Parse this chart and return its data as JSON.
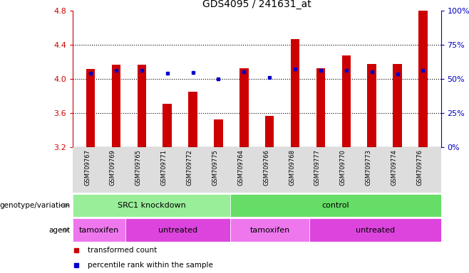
{
  "title": "GDS4095 / 241631_at",
  "samples": [
    "GSM709767",
    "GSM709769",
    "GSM709765",
    "GSM709771",
    "GSM709772",
    "GSM709775",
    "GSM709764",
    "GSM709766",
    "GSM709768",
    "GSM709777",
    "GSM709770",
    "GSM709773",
    "GSM709774",
    "GSM709776"
  ],
  "bar_values": [
    4.12,
    4.17,
    4.17,
    3.71,
    3.85,
    3.53,
    4.13,
    3.57,
    4.47,
    4.13,
    4.28,
    4.18,
    4.18,
    4.8
  ],
  "dot_values": [
    4.07,
    4.1,
    4.1,
    4.07,
    4.08,
    4.0,
    4.09,
    4.02,
    4.12,
    4.1,
    4.1,
    4.09,
    4.06,
    4.1
  ],
  "ylim_left": [
    3.2,
    4.8
  ],
  "ylim_right": [
    0,
    100
  ],
  "bar_color": "#CC0000",
  "dot_color": "#0000CC",
  "background_color": "#FFFFFF",
  "plot_bg_color": "#FFFFFF",
  "axis_left_color": "#CC0000",
  "axis_right_color": "#0000BB",
  "tick_left_values": [
    3.2,
    3.6,
    4.0,
    4.4,
    4.8
  ],
  "tick_right_values": [
    0,
    25,
    50,
    75,
    100
  ],
  "tick_right_labels": [
    "0%",
    "25%",
    "50%",
    "75%",
    "100%"
  ],
  "dotted_lines": [
    3.6,
    4.0,
    4.4
  ],
  "genotype_groups": [
    {
      "label": "SRC1 knockdown",
      "start": 0,
      "end": 6,
      "color": "#99EE99"
    },
    {
      "label": "control",
      "start": 6,
      "end": 14,
      "color": "#66DD66"
    }
  ],
  "agent_groups": [
    {
      "label": "tamoxifen",
      "start": 0,
      "end": 2,
      "color": "#EE77EE"
    },
    {
      "label": "untreated",
      "start": 2,
      "end": 6,
      "color": "#DD44DD"
    },
    {
      "label": "tamoxifen",
      "start": 6,
      "end": 9,
      "color": "#EE77EE"
    },
    {
      "label": "untreated",
      "start": 9,
      "end": 14,
      "color": "#DD44DD"
    }
  ],
  "legend_items": [
    {
      "label": "transformed count",
      "color": "#CC0000"
    },
    {
      "label": "percentile rank within the sample",
      "color": "#0000CC"
    }
  ],
  "genotype_label": "genotype/variation",
  "agent_label": "agent",
  "bar_width": 0.35,
  "base_value": 3.2,
  "title_fontsize": 10
}
